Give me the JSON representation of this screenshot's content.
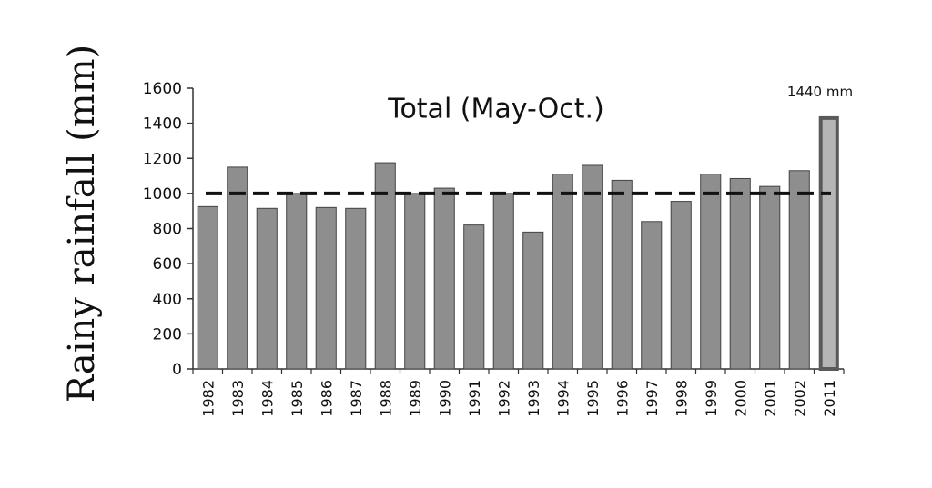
{
  "chart_data": {
    "type": "bar",
    "title": "Total (May-Oct.)",
    "ylabel": "Rainy rainfall (mm)",
    "xlabel": "",
    "ylim": [
      0,
      1600
    ],
    "yticks": [
      "0",
      "200",
      "400",
      "600",
      "800",
      "1000",
      "1200",
      "1400",
      "1600"
    ],
    "categories": [
      "1982",
      "1983",
      "1984",
      "1985",
      "1986",
      "1987",
      "1988",
      "1989",
      "1990",
      "1991",
      "1992",
      "1993",
      "1994",
      "1995",
      "1996",
      "1997",
      "1998",
      "1999",
      "2000",
      "2001",
      "2002",
      "2011"
    ],
    "values": [
      925,
      1150,
      915,
      1000,
      920,
      915,
      1175,
      1000,
      1030,
      820,
      1000,
      780,
      1110,
      1160,
      1075,
      840,
      955,
      1110,
      1085,
      1040,
      1130,
      1440
    ],
    "highlight": {
      "category": "2011",
      "label": "1440 mm"
    },
    "reference_line": {
      "value": 1000,
      "style": "dashed"
    },
    "colors": {
      "bar": "#8e8e8e",
      "highlight_fill": "#b5b5b5",
      "highlight_stroke": "#5a5a5a",
      "axis": "#333333"
    },
    "grid": false,
    "legend": "none"
  }
}
